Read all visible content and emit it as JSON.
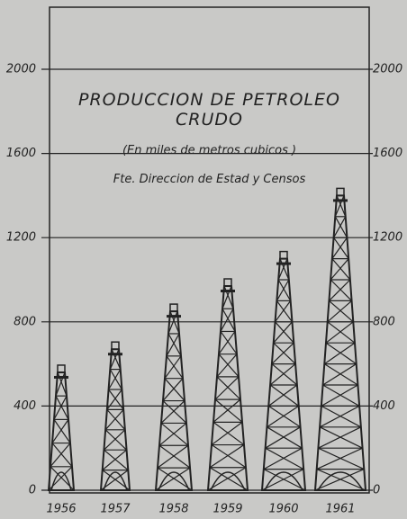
{
  "chart_data": {
    "type": "pictograph",
    "title": "PRODUCCION DE PETROLEO CRUDO",
    "subtitle": "(En miles de metros cubicos )",
    "source": "Fte. Direccion de Estad y Censos",
    "categories": [
      "1956",
      "1957",
      "1958",
      "1959",
      "1960",
      "1961"
    ],
    "values": [
      560,
      670,
      850,
      970,
      1100,
      1400
    ],
    "color": "#222222",
    "ylim": [
      0,
      2000
    ],
    "yticks": [
      0,
      400,
      800,
      1200,
      1600,
      2000
    ],
    "grid": true
  }
}
